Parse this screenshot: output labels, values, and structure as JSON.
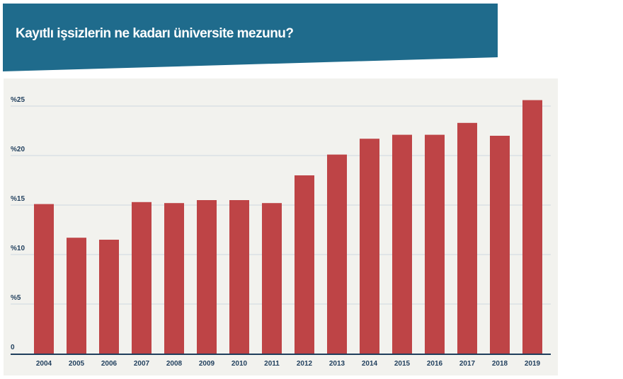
{
  "header": {
    "title": "Kayıtlı işsizlerin ne kadarı üniversite mezunu?"
  },
  "colors": {
    "banner": "#1f6b8c",
    "panel": "#f2f2ee",
    "bar": "#be4446",
    "grid": "#cfd8e0",
    "axis": "#1f3e5c"
  },
  "chart_data": {
    "type": "bar",
    "title": "Kayıtlı işsizlerin ne kadarı üniversite mezunu?",
    "xlabel": "",
    "ylabel": "",
    "categories": [
      "2004",
      "2005",
      "2006",
      "2007",
      "2008",
      "2009",
      "2010",
      "2011",
      "2012",
      "2013",
      "2014",
      "2015",
      "2016",
      "2017",
      "2018",
      "2019"
    ],
    "values": [
      15.1,
      11.7,
      11.5,
      15.3,
      15.2,
      15.5,
      15.5,
      15.2,
      18.0,
      20.1,
      21.7,
      22.1,
      22.1,
      23.3,
      22.0,
      25.6
    ],
    "ylim": [
      0,
      25
    ],
    "yticks": [
      0,
      5,
      10,
      15,
      20,
      25
    ],
    "ytick_labels": [
      "0",
      "%5",
      "%10",
      "%15",
      "%20",
      "%25"
    ],
    "grid": true
  }
}
